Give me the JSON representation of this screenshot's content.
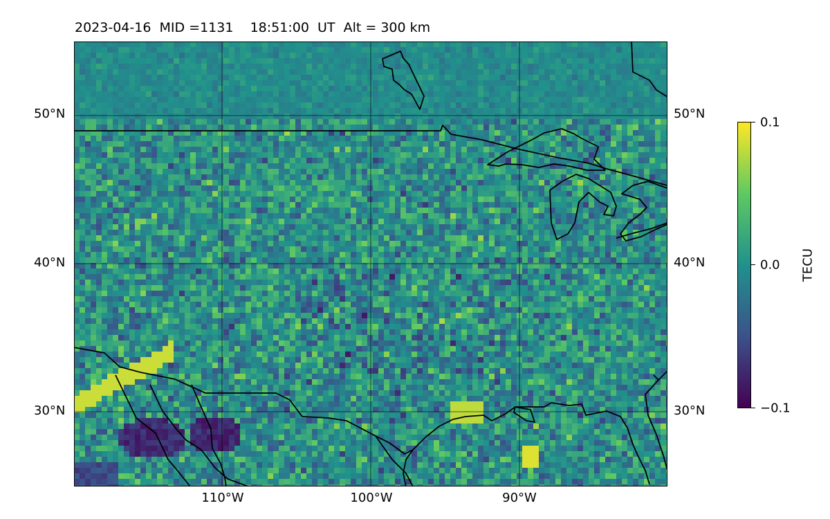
{
  "title": "2023-04-16  MID =1131    18:51:00  UT  Alt = 300 km",
  "map": {
    "lon_range": [
      -120,
      -80
    ],
    "lat_range": [
      25,
      55
    ],
    "gridlines": true,
    "lat_ticks": [
      "50°N",
      "40°N",
      "30°N"
    ],
    "lon_ticks": [
      "110°W",
      "100°W",
      "90°W"
    ],
    "field": "dTEC",
    "colormap": "viridis"
  },
  "colorbar": {
    "label": "TECU",
    "ticks": [
      "0.1",
      "0.0",
      "−0.1"
    ],
    "range": [
      -0.1,
      0.1
    ],
    "colors": [
      "#440154",
      "#3b528b",
      "#21918c",
      "#5ec962",
      "#fde725"
    ]
  }
}
